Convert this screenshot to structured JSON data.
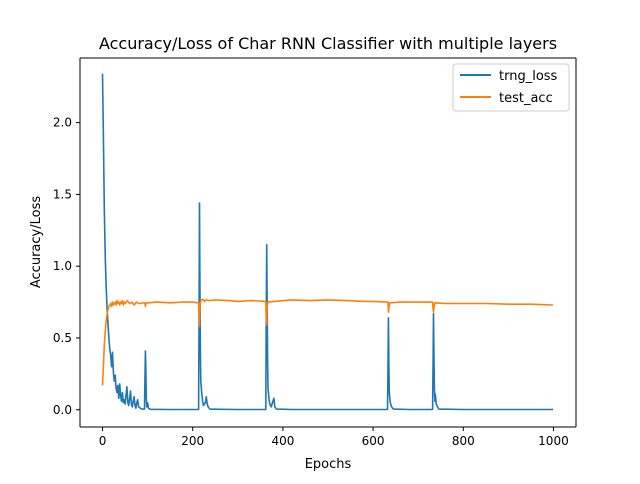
{
  "chart_data": {
    "type": "line",
    "title": "Accuracy/Loss of Char RNN Classifier with multiple layers",
    "xlabel": "Epochs",
    "ylabel": "Accuracy/Loss",
    "xlim": [
      -50,
      1050
    ],
    "ylim": [
      -0.12,
      2.45
    ],
    "x_ticks": [
      0,
      200,
      400,
      600,
      800,
      1000
    ],
    "x_tick_labels": [
      "0",
      "200",
      "400",
      "600",
      "800",
      "1000"
    ],
    "y_ticks": [
      0.0,
      0.5,
      1.0,
      1.5,
      2.0
    ],
    "y_tick_labels": [
      "0.0",
      "0.5",
      "1.0",
      "1.5",
      "2.0"
    ],
    "grid": false,
    "legend_position": "upper right",
    "series": [
      {
        "name": "trng_loss",
        "color": "#1f77b4",
        "points": [
          [
            0,
            2.34
          ],
          [
            2,
            1.9
          ],
          [
            4,
            1.4
          ],
          [
            6,
            1.05
          ],
          [
            8,
            0.85
          ],
          [
            10,
            0.7
          ],
          [
            12,
            0.6
          ],
          [
            14,
            0.5
          ],
          [
            16,
            0.42
          ],
          [
            18,
            0.38
          ],
          [
            20,
            0.3
          ],
          [
            22,
            0.4
          ],
          [
            24,
            0.26
          ],
          [
            26,
            0.2
          ],
          [
            28,
            0.24
          ],
          [
            30,
            0.15
          ],
          [
            32,
            0.12
          ],
          [
            34,
            0.17
          ],
          [
            36,
            0.08
          ],
          [
            38,
            0.18
          ],
          [
            40,
            0.1
          ],
          [
            42,
            0.06
          ],
          [
            44,
            0.12
          ],
          [
            46,
            0.05
          ],
          [
            48,
            0.07
          ],
          [
            50,
            0.04
          ],
          [
            52,
            0.1
          ],
          [
            54,
            0.16
          ],
          [
            56,
            0.05
          ],
          [
            58,
            0.03
          ],
          [
            60,
            0.08
          ],
          [
            62,
            0.13
          ],
          [
            64,
            0.04
          ],
          [
            66,
            0.02
          ],
          [
            68,
            0.06
          ],
          [
            70,
            0.09
          ],
          [
            72,
            0.03
          ],
          [
            74,
            0.01
          ],
          [
            76,
            0.05
          ],
          [
            78,
            0.07
          ],
          [
            80,
            0.02
          ],
          [
            84,
            0.01
          ],
          [
            88,
            0.005
          ],
          [
            93,
            0.005
          ],
          [
            94,
            0.2
          ],
          [
            95,
            0.41
          ],
          [
            96,
            0.3
          ],
          [
            97,
            0.08
          ],
          [
            98,
            0.02
          ],
          [
            100,
            0.05
          ],
          [
            102,
            0.01
          ],
          [
            106,
            0.003
          ],
          [
            150,
            0.002
          ],
          [
            213,
            0.002
          ],
          [
            214,
            0.6
          ],
          [
            215,
            1.44
          ],
          [
            216,
            0.9
          ],
          [
            217,
            0.4
          ],
          [
            218,
            0.2
          ],
          [
            220,
            0.12
          ],
          [
            222,
            0.06
          ],
          [
            224,
            0.03
          ],
          [
            228,
            0.05
          ],
          [
            230,
            0.09
          ],
          [
            232,
            0.04
          ],
          [
            234,
            0.02
          ],
          [
            238,
            0.005
          ],
          [
            260,
            0.003
          ],
          [
            300,
            0.002
          ],
          [
            362,
            0.002
          ],
          [
            363,
            0.6
          ],
          [
            364,
            1.15
          ],
          [
            365,
            0.8
          ],
          [
            366,
            0.35
          ],
          [
            367,
            0.15
          ],
          [
            369,
            0.08
          ],
          [
            371,
            0.04
          ],
          [
            374,
            0.02
          ],
          [
            377,
            0.05
          ],
          [
            380,
            0.08
          ],
          [
            382,
            0.02
          ],
          [
            386,
            0.005
          ],
          [
            420,
            0.002
          ],
          [
            500,
            0.002
          ],
          [
            600,
            0.002
          ],
          [
            632,
            0.002
          ],
          [
            633,
            0.3
          ],
          [
            634,
            0.64
          ],
          [
            635,
            0.3
          ],
          [
            636,
            0.12
          ],
          [
            638,
            0.05
          ],
          [
            641,
            0.02
          ],
          [
            645,
            0.005
          ],
          [
            680,
            0.002
          ],
          [
            732,
            0.002
          ],
          [
            733,
            0.35
          ],
          [
            734,
            0.67
          ],
          [
            735,
            0.35
          ],
          [
            736,
            0.15
          ],
          [
            737,
            0.06
          ],
          [
            738,
            0.11
          ],
          [
            740,
            0.04
          ],
          [
            743,
            0.02
          ],
          [
            746,
            0.005
          ],
          [
            800,
            0.002
          ],
          [
            900,
            0.002
          ],
          [
            999,
            0.002
          ]
        ]
      },
      {
        "name": "test_acc",
        "color": "#ff7f0e",
        "points": [
          [
            0,
            0.17
          ],
          [
            2,
            0.3
          ],
          [
            4,
            0.45
          ],
          [
            6,
            0.55
          ],
          [
            8,
            0.62
          ],
          [
            10,
            0.67
          ],
          [
            12,
            0.7
          ],
          [
            14,
            0.72
          ],
          [
            16,
            0.73
          ],
          [
            18,
            0.74
          ],
          [
            20,
            0.72
          ],
          [
            22,
            0.75
          ],
          [
            24,
            0.73
          ],
          [
            26,
            0.74
          ],
          [
            28,
            0.75
          ],
          [
            30,
            0.73
          ],
          [
            32,
            0.76
          ],
          [
            34,
            0.74
          ],
          [
            36,
            0.75
          ],
          [
            38,
            0.73
          ],
          [
            40,
            0.75
          ],
          [
            42,
            0.74
          ],
          [
            44,
            0.76
          ],
          [
            46,
            0.73
          ],
          [
            48,
            0.75
          ],
          [
            50,
            0.74
          ],
          [
            55,
            0.76
          ],
          [
            60,
            0.74
          ],
          [
            65,
            0.75
          ],
          [
            70,
            0.73
          ],
          [
            75,
            0.75
          ],
          [
            80,
            0.74
          ],
          [
            85,
            0.74
          ],
          [
            90,
            0.745
          ],
          [
            94,
            0.745
          ],
          [
            95,
            0.72
          ],
          [
            96,
            0.74
          ],
          [
            100,
            0.745
          ],
          [
            120,
            0.75
          ],
          [
            150,
            0.745
          ],
          [
            180,
            0.75
          ],
          [
            200,
            0.75
          ],
          [
            213,
            0.745
          ],
          [
            214,
            0.65
          ],
          [
            215,
            0.58
          ],
          [
            216,
            0.72
          ],
          [
            218,
            0.76
          ],
          [
            222,
            0.77
          ],
          [
            226,
            0.755
          ],
          [
            230,
            0.765
          ],
          [
            236,
            0.76
          ],
          [
            250,
            0.765
          ],
          [
            280,
            0.76
          ],
          [
            300,
            0.755
          ],
          [
            330,
            0.76
          ],
          [
            362,
            0.755
          ],
          [
            363,
            0.64
          ],
          [
            364,
            0.59
          ],
          [
            365,
            0.72
          ],
          [
            367,
            0.75
          ],
          [
            380,
            0.755
          ],
          [
            420,
            0.765
          ],
          [
            460,
            0.76
          ],
          [
            500,
            0.765
          ],
          [
            540,
            0.76
          ],
          [
            580,
            0.755
          ],
          [
            600,
            0.755
          ],
          [
            633,
            0.75
          ],
          [
            634,
            0.68
          ],
          [
            635,
            0.71
          ],
          [
            637,
            0.745
          ],
          [
            660,
            0.75
          ],
          [
            700,
            0.75
          ],
          [
            732,
            0.75
          ],
          [
            733,
            0.7
          ],
          [
            734,
            0.68
          ],
          [
            735,
            0.72
          ],
          [
            737,
            0.745
          ],
          [
            760,
            0.74
          ],
          [
            800,
            0.74
          ],
          [
            850,
            0.74
          ],
          [
            900,
            0.735
          ],
          [
            950,
            0.735
          ],
          [
            999,
            0.73
          ]
        ]
      }
    ]
  }
}
